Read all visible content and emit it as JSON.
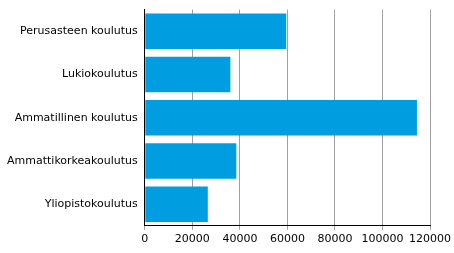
{
  "chart_data": {
    "type": "bar",
    "orientation": "horizontal",
    "categories": [
      "Perusasteen koulutus",
      "Lukiokoulutus",
      "Ammatillinen koulutus",
      "Ammattikorkeakoulutus",
      "Yliopistokoulutus"
    ],
    "values": [
      59500,
      36000,
      114500,
      38500,
      26500
    ],
    "color": "#009ee0",
    "xlim": [
      0,
      120000
    ],
    "xticks": [
      0,
      20000,
      40000,
      60000,
      80000,
      100000,
      120000
    ],
    "grid": true
  }
}
